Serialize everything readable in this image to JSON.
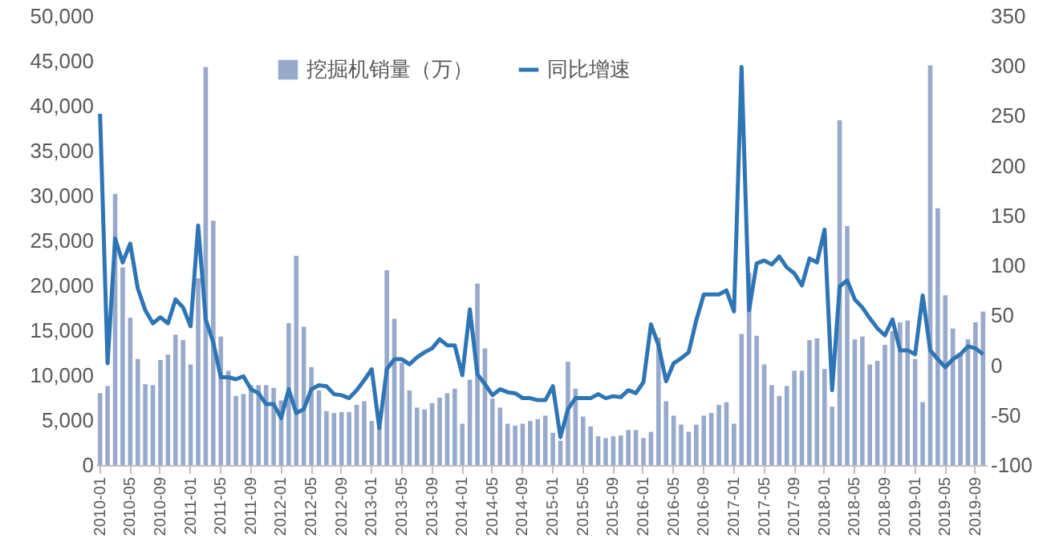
{
  "chart_data": {
    "type": "bar",
    "legend": "top",
    "categories": [
      "2010-01",
      null,
      null,
      null,
      "2010-05",
      null,
      null,
      null,
      "2010-09",
      null,
      null,
      null,
      "2011-01",
      null,
      null,
      null,
      "2011-05",
      null,
      null,
      null,
      "2011-09",
      null,
      null,
      null,
      "2012-01",
      null,
      null,
      null,
      "2012-05",
      null,
      null,
      null,
      "2012-09",
      null,
      null,
      null,
      "2013-01",
      null,
      null,
      null,
      "2013-05",
      null,
      null,
      null,
      "2013-09",
      null,
      null,
      null,
      "2014-01",
      null,
      null,
      null,
      "2014-05",
      null,
      null,
      null,
      "2014-09",
      null,
      null,
      null,
      "2015-01",
      null,
      null,
      null,
      "2015-05",
      null,
      null,
      null,
      "2015-09",
      null,
      null,
      null,
      "2016-01",
      null,
      null,
      null,
      "2016-05",
      null,
      null,
      null,
      "2016-09",
      null,
      null,
      null,
      "2017-01",
      null,
      null,
      null,
      "2017-05",
      null,
      null,
      null,
      "2017-09",
      null,
      null,
      null,
      "2018-01",
      null,
      null,
      null,
      "2018-05",
      null,
      null,
      null,
      "2018-09",
      null,
      null,
      null,
      "2019-01",
      null,
      null,
      null,
      "2019-05",
      null,
      null,
      null,
      "2019-09",
      null
    ],
    "series": [
      {
        "name": "挖掘机销量（万）",
        "color": "#98aacb",
        "values": [
          8000,
          8800,
          30200,
          22000,
          16400,
          11800,
          9000,
          8900,
          11700,
          12300,
          14500,
          13900,
          11200,
          20800,
          44300,
          27200,
          14300,
          10500,
          7700,
          7900,
          8900,
          8900,
          8900,
          8600,
          7200,
          15800,
          23300,
          15400,
          10900,
          8300,
          6000,
          5800,
          5900,
          5900,
          6700,
          7100,
          4900,
          4200,
          21700,
          16300,
          11400,
          8300,
          6400,
          6200,
          6900,
          7500,
          8000,
          8500,
          4600,
          9500,
          20200,
          13000,
          7400,
          6400,
          4600,
          4400,
          4600,
          4900,
          5100,
          5500,
          3600,
          2700,
          11500,
          8500,
          5400,
          4300,
          3200,
          3000,
          3200,
          3300,
          3900,
          3900,
          3000,
          3700,
          14200,
          7100,
          5500,
          4500,
          3700,
          4500,
          5500,
          5800,
          6700,
          7000,
          4600,
          14600,
          21400,
          14400,
          11200,
          8900,
          7700,
          8800,
          10500,
          10500,
          13900,
          14100,
          10700,
          6500,
          38400,
          26600,
          14000,
          14300,
          11200,
          11600,
          13400,
          14900,
          15900,
          16100,
          11800,
          7000,
          44500,
          28600,
          18900,
          15200,
          12500,
          14000,
          15900,
          17100
        ]
      },
      {
        "name": "同比增速",
        "type": "line",
        "axis": "y2",
        "color": "#2e75b6",
        "values": [
          252,
          2,
          127,
          103,
          122,
          77,
          55,
          42,
          48,
          42,
          66,
          58,
          39,
          140,
          46,
          23,
          -12,
          -12,
          -14,
          -11,
          -24,
          -28,
          -39,
          -39,
          -53,
          -24,
          -48,
          -44,
          -24,
          -20,
          -21,
          -29,
          -30,
          -33,
          -25,
          -15,
          -4,
          -63,
          -4,
          6,
          6,
          1,
          8,
          13,
          17,
          26,
          20,
          20,
          -10,
          56,
          -9,
          -19,
          -30,
          -24,
          -27,
          -28,
          -33,
          -33,
          -35,
          -35,
          -21,
          -72,
          -44,
          -33,
          -33,
          -33,
          -29,
          -33,
          -31,
          -32,
          -25,
          -28,
          -17,
          41,
          20,
          -16,
          2,
          7,
          13,
          45,
          71,
          71,
          71,
          75,
          54,
          299,
          55,
          102,
          105,
          101,
          109,
          98,
          92,
          80,
          107,
          103,
          136,
          -25,
          79,
          85,
          66,
          58,
          47,
          37,
          30,
          46,
          15,
          15,
          11,
          70,
          15,
          6,
          -2,
          6,
          11,
          19,
          17,
          11
        ]
      }
    ],
    "ylim": [
      0,
      50000
    ],
    "yticks": [
      0,
      {
        "value": 5000,
        "label": "5,000"
      },
      {
        "value": 10000,
        "label": "10,000"
      },
      {
        "value": 15000,
        "label": "15,000"
      },
      {
        "value": 20000,
        "label": "20,000"
      },
      {
        "value": 25000,
        "label": "25,000"
      },
      {
        "value": 30000,
        "label": "30,000"
      },
      {
        "value": 35000,
        "label": "35,000"
      },
      {
        "value": 40000,
        "label": "40,000"
      },
      {
        "value": 45000,
        "label": "45,000"
      },
      {
        "value": 50000,
        "label": "50,000"
      }
    ],
    "y2lim": [
      -100,
      350
    ],
    "y2ticks": [
      -100,
      -50,
      0,
      50,
      100,
      150,
      200,
      250,
      300,
      350
    ]
  }
}
